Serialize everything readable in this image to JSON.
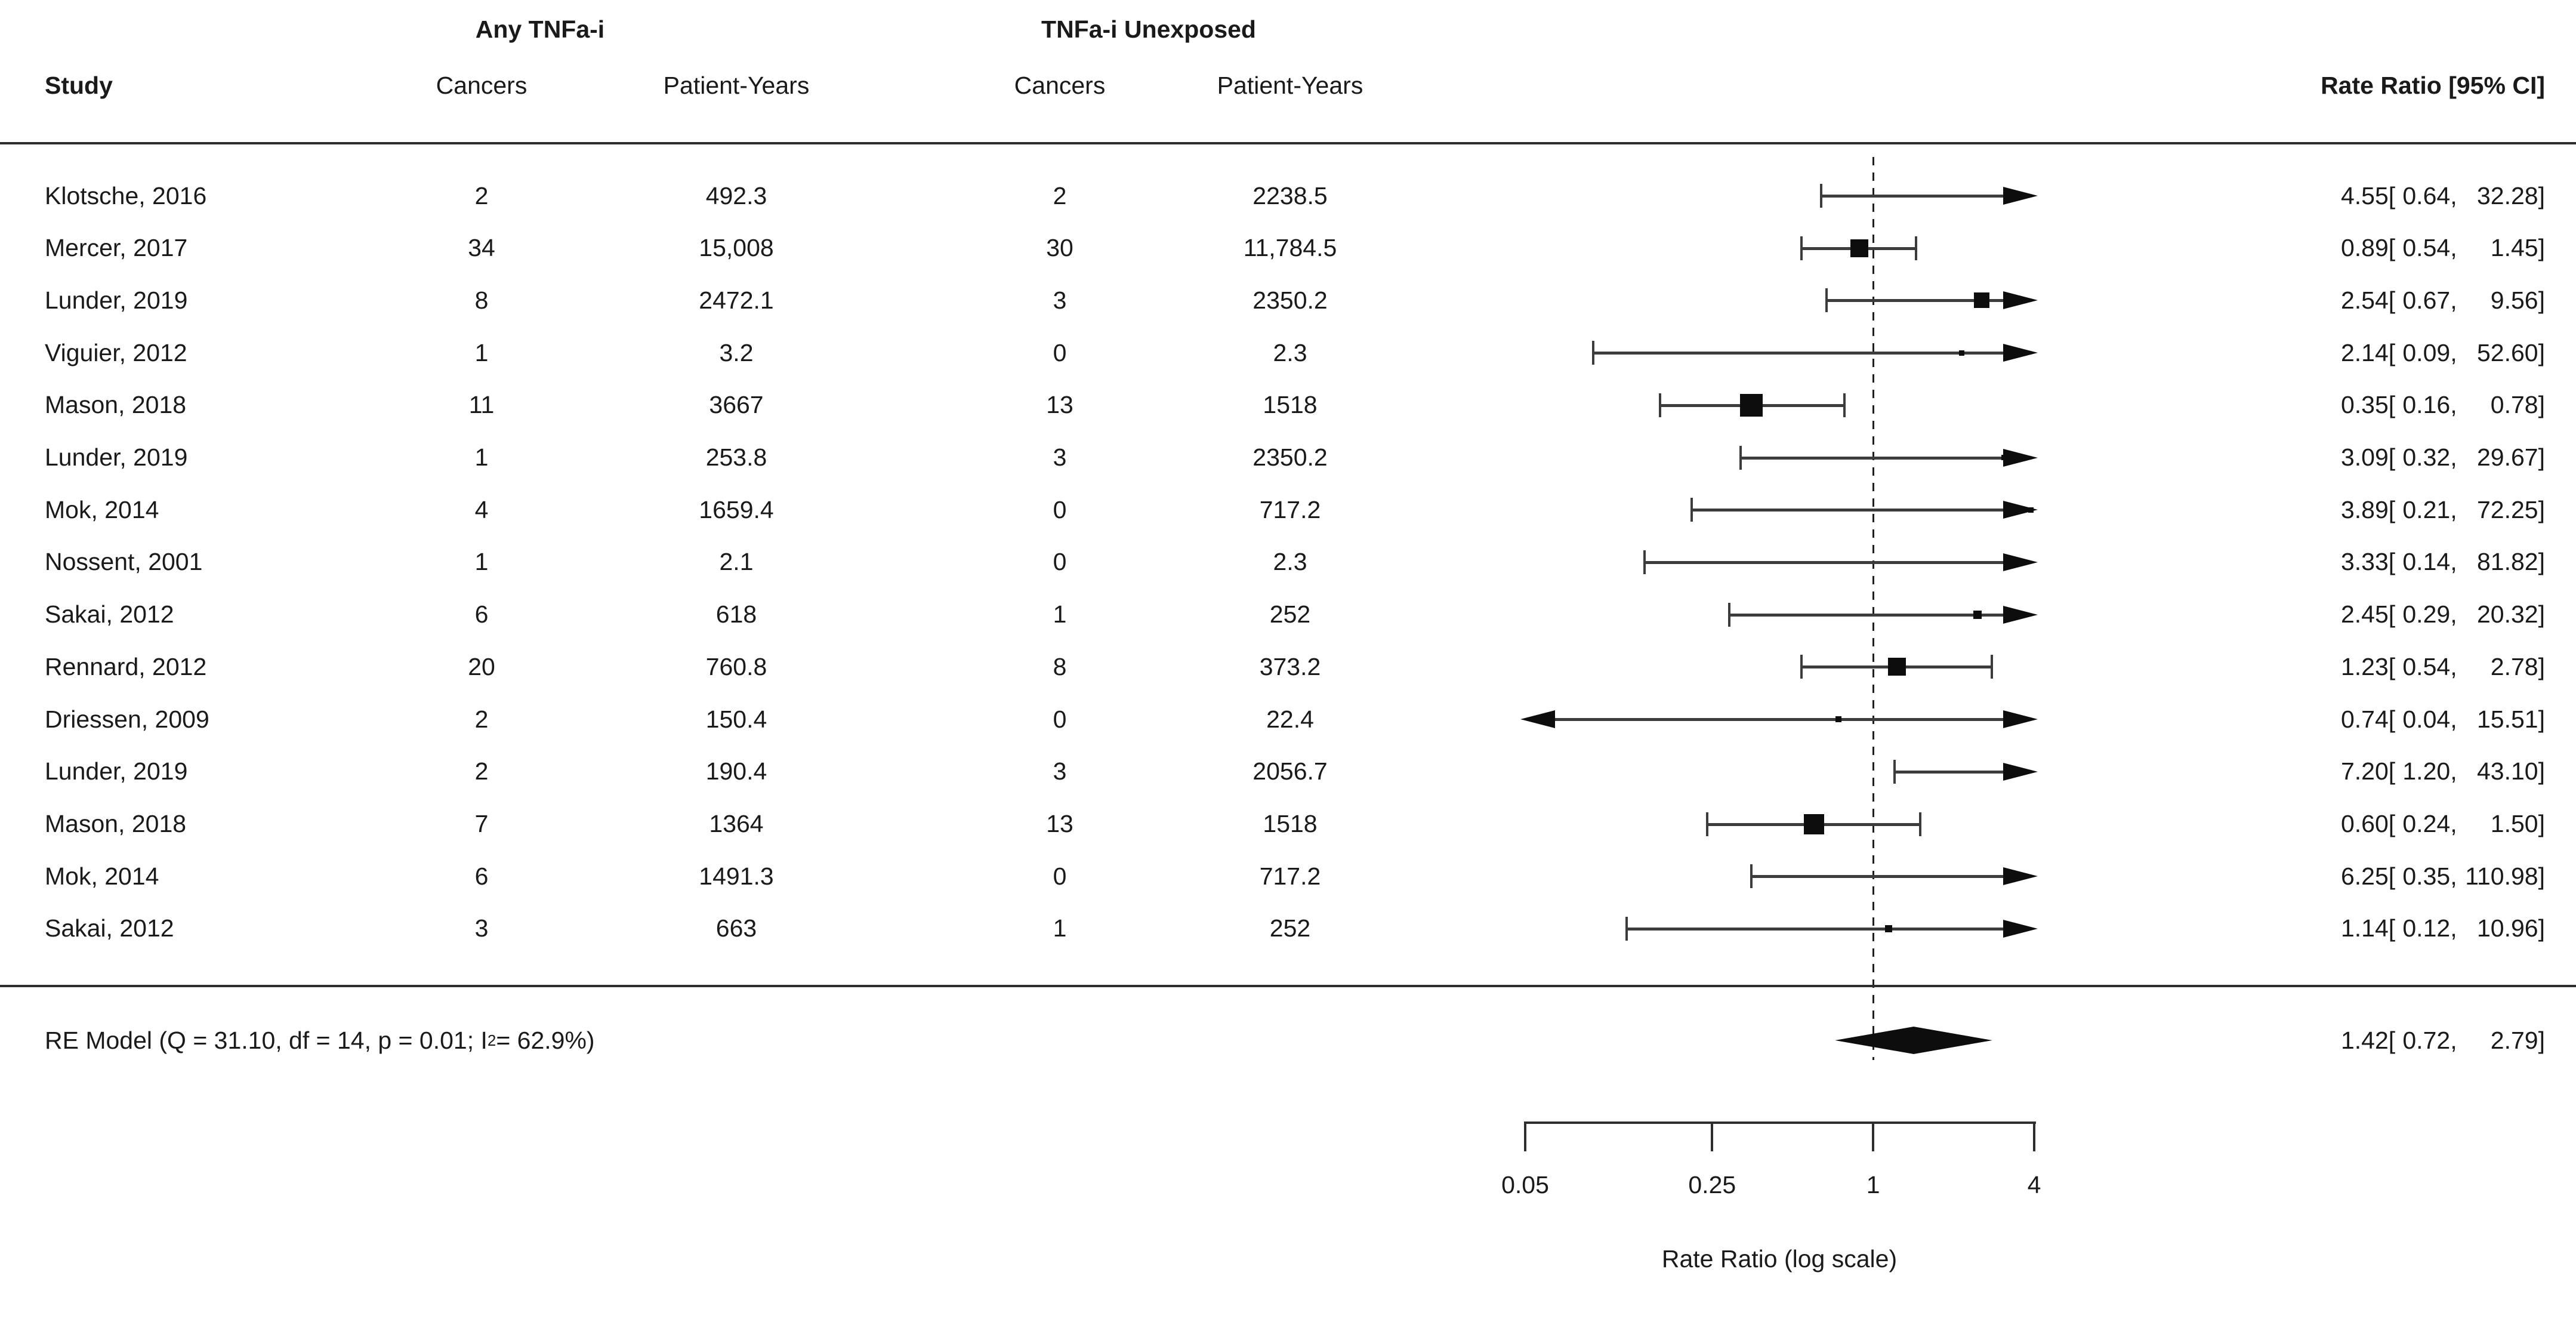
{
  "header": {
    "group_exposed": "Any TNFa-i",
    "group_unexposed": "TNFa-i Unexposed",
    "study": "Study",
    "cancers": "Cancers",
    "patient_years": "Patient-Years",
    "rate_ratio": "Rate Ratio [95% CI]"
  },
  "axis": {
    "label": "Rate Ratio (log scale)",
    "scale": "log",
    "min": 0.05,
    "max": 4,
    "reference_line": 1,
    "ticks": [
      {
        "value": 0.05,
        "label": "0.05"
      },
      {
        "value": 0.25,
        "label": "0.25"
      },
      {
        "value": 1,
        "label": "1"
      },
      {
        "value": 4,
        "label": "4"
      }
    ]
  },
  "summary": {
    "label_prefix": "RE Model (Q = 31.10, df = 14, p = 0.01; I",
    "label_sup": "2",
    "label_suffix": " = 62.9%)",
    "rr": {
      "est": "1.42",
      "lower": "0.72",
      "upper": "2.79"
    }
  },
  "chart_data": {
    "type": "forest",
    "effect_measure": "Rate Ratio",
    "xlim": [
      0.05,
      4
    ],
    "reference_line": 1,
    "rows": [
      {
        "study": "Klotsche, 2016",
        "exposed_cancers": "2",
        "exposed_patient_years": "492.3",
        "unexposed_cancers": "2",
        "unexposed_patient_years": "2238.5",
        "rr": {
          "est": "4.55",
          "lower": "0.64",
          "upper": "32.28"
        },
        "marker_size": 0
      },
      {
        "study": "Mercer, 2017",
        "exposed_cancers": "34",
        "exposed_patient_years": "15,008",
        "unexposed_cancers": "30",
        "unexposed_patient_years": "11,784.5",
        "rr": {
          "est": "0.89",
          "lower": "0.54",
          "upper": "1.45"
        },
        "marker_size": 30
      },
      {
        "study": "Lunder, 2019",
        "exposed_cancers": "8",
        "exposed_patient_years": "2472.1",
        "unexposed_cancers": "3",
        "unexposed_patient_years": "2350.2",
        "rr": {
          "est": "2.54",
          "lower": "0.67",
          "upper": "9.56"
        },
        "marker_size": 26
      },
      {
        "study": "Viguier, 2012",
        "exposed_cancers": "1",
        "exposed_patient_years": "3.2",
        "unexposed_cancers": "0",
        "unexposed_patient_years": "2.3",
        "rr": {
          "est": "2.14",
          "lower": "0.09",
          "upper": "52.60"
        },
        "marker_size": 9
      },
      {
        "study": "Mason, 2018",
        "exposed_cancers": "11",
        "exposed_patient_years": "3667",
        "unexposed_cancers": "13",
        "unexposed_patient_years": "1518",
        "rr": {
          "est": "0.35",
          "lower": "0.16",
          "upper": "0.78"
        },
        "marker_size": 38
      },
      {
        "study": "Lunder, 2019",
        "exposed_cancers": "1",
        "exposed_patient_years": "253.8",
        "unexposed_cancers": "3",
        "unexposed_patient_years": "2350.2",
        "rr": {
          "est": "3.09",
          "lower": "0.32",
          "upper": "29.67"
        },
        "marker_size": 9
      },
      {
        "study": "Mok, 2014",
        "exposed_cancers": "4",
        "exposed_patient_years": "1659.4",
        "unexposed_cancers": "0",
        "unexposed_patient_years": "717.2",
        "rr": {
          "est": "3.89",
          "lower": "0.21",
          "upper": "72.25"
        },
        "marker_size": 9
      },
      {
        "study": "Nossent, 2001",
        "exposed_cancers": "1",
        "exposed_patient_years": "2.1",
        "unexposed_cancers": "0",
        "unexposed_patient_years": "2.3",
        "rr": {
          "est": "3.33",
          "lower": "0.14",
          "upper": "81.82"
        },
        "marker_size": 7
      },
      {
        "study": "Sakai, 2012",
        "exposed_cancers": "6",
        "exposed_patient_years": "618",
        "unexposed_cancers": "1",
        "unexposed_patient_years": "252",
        "rr": {
          "est": "2.45",
          "lower": "0.29",
          "upper": "20.32"
        },
        "marker_size": 14
      },
      {
        "study": "Rennard, 2012",
        "exposed_cancers": "20",
        "exposed_patient_years": "760.8",
        "unexposed_cancers": "8",
        "unexposed_patient_years": "373.2",
        "rr": {
          "est": "1.23",
          "lower": "0.54",
          "upper": "2.78"
        },
        "marker_size": 30
      },
      {
        "study": "Driessen, 2009",
        "exposed_cancers": "2",
        "exposed_patient_years": "150.4",
        "unexposed_cancers": "0",
        "unexposed_patient_years": "22.4",
        "rr": {
          "est": "0.74",
          "lower": "0.04",
          "upper": "15.51"
        },
        "marker_size": 10
      },
      {
        "study": "Lunder, 2019",
        "exposed_cancers": "2",
        "exposed_patient_years": "190.4",
        "unexposed_cancers": "3",
        "unexposed_patient_years": "2056.7",
        "rr": {
          "est": "7.20",
          "lower": "1.20",
          "upper": "43.10"
        },
        "marker_size": 0
      },
      {
        "study": "Mason, 2018",
        "exposed_cancers": "7",
        "exposed_patient_years": "1364",
        "unexposed_cancers": "13",
        "unexposed_patient_years": "1518",
        "rr": {
          "est": "0.60",
          "lower": "0.24",
          "upper": "1.50"
        },
        "marker_size": 34
      },
      {
        "study": "Mok, 2014",
        "exposed_cancers": "6",
        "exposed_patient_years": "1491.3",
        "unexposed_cancers": "0",
        "unexposed_patient_years": "717.2",
        "rr": {
          "est": "6.25",
          "lower": "0.35",
          "upper": "110.98"
        },
        "marker_size": 0
      },
      {
        "study": "Sakai, 2012",
        "exposed_cancers": "3",
        "exposed_patient_years": "663",
        "unexposed_cancers": "1",
        "unexposed_patient_years": "252",
        "rr": {
          "est": "1.14",
          "lower": "0.12",
          "upper": "10.96"
        },
        "marker_size": 12
      }
    ],
    "summary_row": {
      "label": "RE Model (Q = 31.10, df = 14, p = 0.01; I2 = 62.9%)",
      "est": 1.42,
      "lower": 0.72,
      "upper": 2.79
    }
  }
}
